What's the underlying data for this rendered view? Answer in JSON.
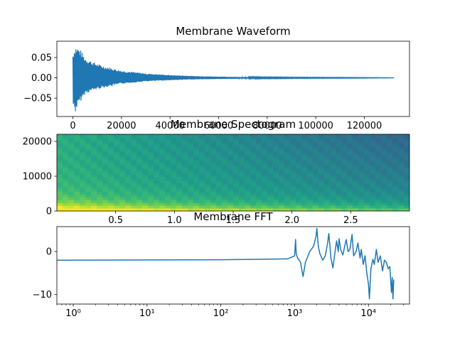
{
  "chart_data": [
    {
      "type": "line",
      "title": "Membrane Waveform",
      "xlabel": "",
      "ylabel": "",
      "xlim": [
        -6600,
        138600
      ],
      "ylim": [
        -0.095,
        0.09
      ],
      "x_ticks": [
        0,
        20000,
        40000,
        60000,
        80000,
        100000,
        120000
      ],
      "x_tick_labels": [
        "0",
        "20000",
        "40000",
        "60000",
        "80000",
        "100000",
        "120000"
      ],
      "y_ticks": [
        0.05,
        0.0,
        -0.05
      ],
      "y_tick_labels": [
        "0.05",
        "0.00",
        "−0.05"
      ],
      "color": "#1f77b4",
      "envelope": {
        "x": [
          0,
          1000,
          2000,
          3000,
          5000,
          8000,
          12000,
          20000,
          30000,
          40000,
          50000,
          60000,
          70000,
          80000,
          90000,
          100000,
          115000,
          132300
        ],
        "upper": [
          0.06,
          0.078,
          0.075,
          0.07,
          0.05,
          0.04,
          0.03,
          0.018,
          0.011,
          0.007,
          0.0045,
          0.003,
          0.002,
          0.0015,
          0.0012,
          0.001,
          0.0008,
          0.0003
        ],
        "lower": [
          -0.07,
          -0.085,
          -0.07,
          -0.06,
          -0.04,
          -0.032,
          -0.025,
          -0.015,
          -0.009,
          -0.006,
          -0.004,
          -0.003,
          -0.002,
          -0.0015,
          -0.0012,
          -0.001,
          -0.0008,
          -0.0003
        ]
      }
    },
    {
      "type": "heatmap",
      "title": "Membrane Spectogram",
      "xlabel": "",
      "ylabel": "",
      "xlim": [
        0.0,
        3.0
      ],
      "ylim": [
        0,
        22050
      ],
      "x_ticks": [
        0.5,
        1.0,
        1.5,
        2.0,
        2.5
      ],
      "x_tick_labels": [
        "0.5",
        "1.0",
        "1.5",
        "2.0",
        "2.5"
      ],
      "y_ticks": [
        0,
        10000,
        20000
      ],
      "y_tick_labels": [
        "0",
        "10000",
        "20000"
      ],
      "colormap": "viridis"
    },
    {
      "type": "line",
      "title": "Membrane FFT",
      "xlabel": "",
      "ylabel": "",
      "xscale": "log",
      "xlim": [
        0.6,
        36000
      ],
      "ylim": [
        -12.2,
        5.8
      ],
      "x_ticks": [
        1,
        10,
        100,
        1000,
        10000
      ],
      "x_tick_labels": [
        "10⁰",
        "10¹",
        "10²",
        "10³",
        "10⁴"
      ],
      "y_ticks": [
        0,
        -10
      ],
      "y_tick_labels": [
        "0",
        "−10"
      ],
      "color": "#1f77b4",
      "series": [
        {
          "x": [
            0.6,
            100,
            800,
            1000,
            1030,
            1050,
            1100,
            1200,
            1300,
            1400,
            1600,
            1800,
            1950,
            2000,
            2100,
            2200,
            2400,
            2600,
            2700,
            2800,
            2900,
            3000,
            3100,
            3300,
            3500,
            3700,
            3900,
            4000,
            4200,
            4500,
            4800,
            5000,
            5300,
            5600,
            6000,
            6300,
            6800,
            7200,
            7700,
            8000,
            8500,
            9000,
            9500,
            10000,
            10300,
            10800,
            11500,
            12000,
            12800,
            13500,
            14500,
            15500,
            16500,
            17500,
            18500,
            19500,
            20500,
            21000,
            21500,
            22050
          ],
          "y": [
            -2.0,
            -1.9,
            -1.7,
            -1.0,
            2.8,
            -0.5,
            -1.5,
            -2.5,
            -5.8,
            -2.5,
            0.0,
            1.2,
            3.5,
            5.4,
            1.0,
            -0.5,
            -2.0,
            -1.0,
            0.5,
            2.0,
            4.2,
            1.5,
            -1.5,
            -3.8,
            -0.5,
            2.5,
            0.0,
            3.0,
            0.5,
            -0.8,
            1.5,
            2.8,
            0.0,
            0.5,
            4.0,
            -1.0,
            0.0,
            2.0,
            -1.5,
            0.5,
            -3.0,
            -1.0,
            -5.0,
            -7.5,
            -11.0,
            -4.0,
            -1.8,
            -3.0,
            0.5,
            -2.5,
            -1.0,
            -4.5,
            -2.0,
            -2.5,
            -4.0,
            -3.5,
            -9.5,
            -6.0,
            -11.0,
            -6.5
          ]
        }
      ]
    }
  ]
}
